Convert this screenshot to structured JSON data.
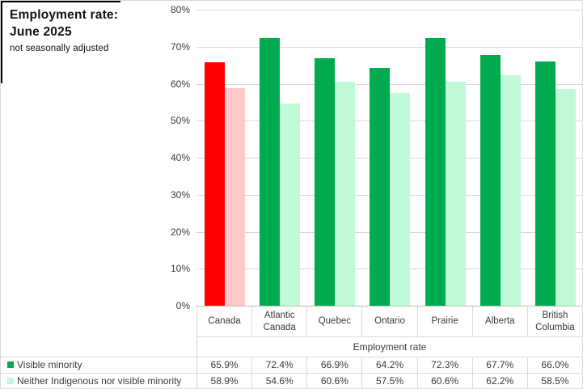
{
  "title": {
    "line1": "Employment rate:",
    "line2": "June 2025",
    "subtitle": "not seasonally adjusted"
  },
  "chart_data": {
    "type": "bar",
    "categories": [
      "Canada",
      "Atlantic Canada",
      "Quebec",
      "Ontario",
      "Prairie",
      "Alberta",
      "British Columbia"
    ],
    "series": [
      {
        "name": "Visible minority",
        "values": [
          65.9,
          72.4,
          66.9,
          64.2,
          72.3,
          67.7,
          66.0
        ],
        "values_formatted": [
          "65.9%",
          "72.4%",
          "66.9%",
          "64.2%",
          "72.3%",
          "67.7%",
          "66.0%"
        ],
        "bar_colors": [
          "#ff0000",
          "#00ab50",
          "#00ab50",
          "#00ab50",
          "#00ab50",
          "#00ab50",
          "#00ab50"
        ],
        "legend_color": "#00ab50"
      },
      {
        "name": "Neither Indigenous nor visible minority",
        "values": [
          58.9,
          54.6,
          60.6,
          57.5,
          60.6,
          62.2,
          58.5
        ],
        "values_formatted": [
          "58.9%",
          "54.6%",
          "60.6%",
          "57.5%",
          "60.6%",
          "62.2%",
          "58.5%"
        ],
        "bar_colors": [
          "#ffc9c9",
          "#c0fad6",
          "#c0fad6",
          "#c0fad6",
          "#c0fad6",
          "#c0fad6",
          "#c0fad6"
        ],
        "legend_color": "#c0fad6"
      }
    ],
    "ylim": [
      0,
      80
    ],
    "ytick_labels": [
      "0%",
      "10%",
      "20%",
      "30%",
      "40%",
      "50%",
      "60%",
      "70%",
      "80%"
    ],
    "ytick_step": 10,
    "grid": true,
    "table_header": "Employment rate",
    "legend_position": "data-table-left"
  },
  "colors": {
    "gridline": "#d9d9d9",
    "axisline": "#c0c0c0",
    "text": "#3b3b3b"
  }
}
